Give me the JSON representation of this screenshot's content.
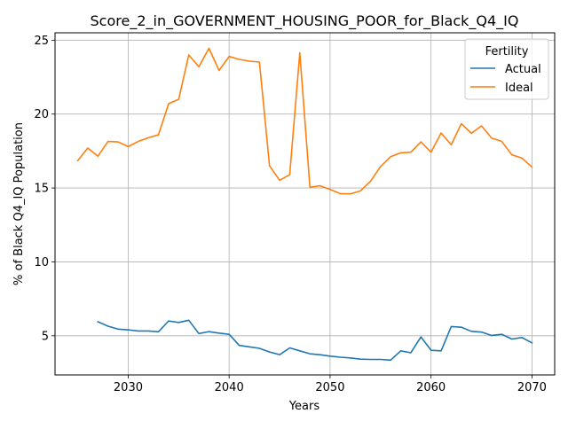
{
  "chart_data": {
    "type": "line",
    "title": "Score_2_in_GOVERNMENT_HOUSING_POOR_for_Black_Q4_IQ",
    "xlabel": "Years",
    "ylabel": "% of Black Q4_IQ Population",
    "xlim": [
      2022.75,
      2072.25
    ],
    "ylim": [
      2.35,
      25.5
    ],
    "xticks": [
      2030,
      2040,
      2050,
      2060,
      2070
    ],
    "yticks": [
      5,
      10,
      15,
      20,
      25
    ],
    "grid": true,
    "legend": {
      "title": "Fertility",
      "position": "top-right"
    },
    "colors": {
      "Actual": "#1f77b4",
      "Ideal": "#ff7f0e"
    },
    "series": [
      {
        "name": "Actual",
        "x": [
          2027,
          2028,
          2029,
          2030,
          2031,
          2032,
          2033,
          2034,
          2035,
          2036,
          2037,
          2038,
          2039,
          2040,
          2041,
          2042,
          2043,
          2044,
          2045,
          2046,
          2047,
          2048,
          2049,
          2050,
          2051,
          2052,
          2053,
          2054,
          2055,
          2056,
          2057,
          2058,
          2059,
          2060,
          2061,
          2062,
          2063,
          2064,
          2065,
          2066,
          2067,
          2068,
          2069,
          2070
        ],
        "values": [
          5.95,
          5.65,
          5.45,
          5.4,
          5.32,
          5.32,
          5.27,
          6.0,
          5.9,
          6.05,
          5.15,
          5.28,
          5.18,
          5.1,
          4.35,
          4.25,
          4.15,
          3.9,
          3.72,
          4.18,
          3.98,
          3.78,
          3.72,
          3.62,
          3.55,
          3.5,
          3.42,
          3.4,
          3.4,
          3.35,
          3.98,
          3.85,
          4.92,
          4.02,
          3.98,
          5.62,
          5.58,
          5.3,
          5.25,
          5.02,
          5.1,
          4.78,
          4.88,
          4.52
        ]
      },
      {
        "name": "Ideal",
        "x": [
          2025,
          2026,
          2027,
          2028,
          2029,
          2030,
          2031,
          2032,
          2033,
          2034,
          2035,
          2036,
          2037,
          2038,
          2039,
          2040,
          2041,
          2042,
          2043,
          2044,
          2045,
          2046,
          2047,
          2048,
          2049,
          2050,
          2051,
          2052,
          2053,
          2054,
          2055,
          2056,
          2057,
          2058,
          2059,
          2060,
          2061,
          2062,
          2063,
          2064,
          2065,
          2066,
          2067,
          2068,
          2069,
          2070
        ],
        "values": [
          16.85,
          17.7,
          17.15,
          18.15,
          18.12,
          17.8,
          18.15,
          18.4,
          18.6,
          20.7,
          21.0,
          24.0,
          23.2,
          24.45,
          22.95,
          23.9,
          23.7,
          23.58,
          23.52,
          16.5,
          15.52,
          15.9,
          24.15,
          15.05,
          15.15,
          14.9,
          14.62,
          14.6,
          14.8,
          15.45,
          16.45,
          17.12,
          17.38,
          17.42,
          18.12,
          17.42,
          18.72,
          17.92,
          19.35,
          18.7,
          19.2,
          18.38,
          18.15,
          17.25,
          17.02,
          16.42
        ]
      }
    ]
  }
}
